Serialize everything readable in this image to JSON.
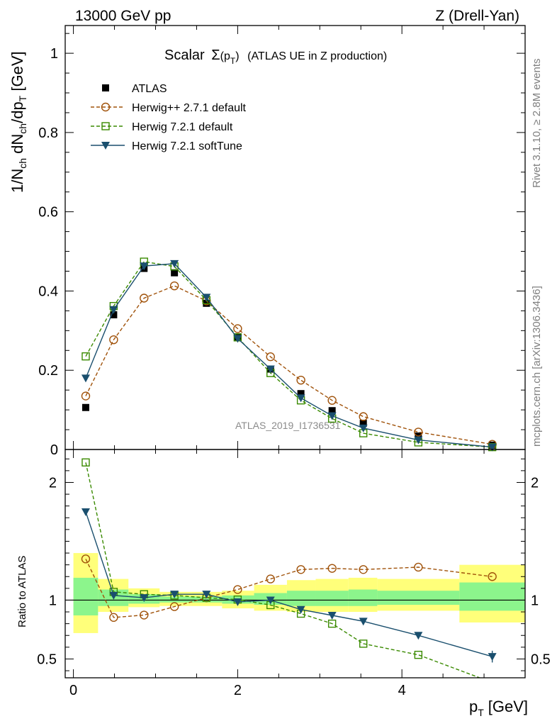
{
  "header": {
    "energy": "13000 GeV pp",
    "process": "Z (Drell-Yan)"
  },
  "side_labels": {
    "rivet": "Rivet 3.1.10, ≥ 2.8M events",
    "mcplots": "mcplots.cern.ch [arXiv:1306.3436]"
  },
  "watermark": "ATLAS_2019_I1736531",
  "chart_data": [
    {
      "type": "line",
      "panel": "main",
      "title": "Scalar Σ(pT) (ATLAS UE in Z production)",
      "title_main": "Scalar",
      "title_sigma": "Σ",
      "title_arg": "(p",
      "title_arg_sub": "T",
      "title_arg_close": ")",
      "title_rest": "(ATLAS UE in Z production)",
      "ylabel": "1/Nch dNch/dpT [GeV]",
      "ylabel_parts": [
        "1/N",
        "ch",
        " dN",
        "ch",
        "/dp",
        "T",
        " [GeV]"
      ],
      "xlim": [
        -0.1,
        5.5
      ],
      "ylim": [
        0,
        1.07
      ],
      "yticks": [
        0,
        0.2,
        0.4,
        0.6,
        0.8,
        1
      ],
      "ytick_labels": [
        "0",
        "0.2",
        "0.4",
        "0.6",
        "0.8",
        "1"
      ],
      "legend_position": "top-left",
      "x": [
        0.15,
        0.49,
        0.86,
        1.23,
        1.62,
        2.0,
        2.4,
        2.77,
        3.15,
        3.53,
        4.2,
        5.1
      ],
      "series": [
        {
          "name": "ATLAS",
          "color": "#000000",
          "marker": "filled-square",
          "line": "none",
          "values": [
            0.106,
            0.34,
            0.457,
            0.446,
            0.369,
            0.284,
            0.203,
            0.141,
            0.098,
            0.066,
            0.034,
            0.011
          ]
        },
        {
          "name": "Herwig++ 2.7.1 default",
          "color": "#a0520a",
          "marker": "open-circle",
          "line": "dashed",
          "values": [
            0.135,
            0.277,
            0.382,
            0.413,
            0.375,
            0.305,
            0.234,
            0.175,
            0.124,
            0.083,
            0.044,
            0.013
          ]
        },
        {
          "name": "Herwig 7.2.1 default",
          "color": "#3a8a00",
          "marker": "open-square",
          "line": "dashed",
          "values": [
            0.235,
            0.362,
            0.474,
            0.462,
            0.377,
            0.283,
            0.193,
            0.124,
            0.078,
            0.041,
            0.018,
            0.006
          ]
        },
        {
          "name": "Herwig 7.2.1 softTune",
          "color": "#1a4f6e",
          "marker": "filled-triangle-down",
          "line": "solid",
          "values": [
            0.18,
            0.353,
            0.463,
            0.469,
            0.384,
            0.28,
            0.203,
            0.13,
            0.085,
            0.054,
            0.024,
            0.006
          ]
        }
      ]
    },
    {
      "type": "line",
      "panel": "ratio",
      "ylabel": "Ratio to ATLAS",
      "xlabel": "pT [GeV]",
      "xlabel_main": "p",
      "xlabel_sub": "T",
      "xlabel_unit": "[GeV]",
      "xlim": [
        -0.1,
        5.5
      ],
      "ylim": [
        0.34,
        2.28
      ],
      "yticks": [
        0.5,
        1,
        2
      ],
      "ytick_labels": [
        "0.5",
        "1",
        "2"
      ],
      "xticks": [
        0,
        2,
        4
      ],
      "xtick_labels": [
        "0",
        "2",
        "4"
      ],
      "x": [
        0.15,
        0.49,
        0.86,
        1.23,
        1.62,
        2.0,
        2.4,
        2.77,
        3.15,
        3.53,
        4.2,
        5.1
      ],
      "bands": {
        "bin_edges": [
          0.0,
          0.3,
          0.67,
          1.05,
          1.43,
          1.81,
          2.2,
          2.6,
          2.95,
          3.35,
          3.7,
          4.7,
          5.5
        ],
        "yellow_low": [
          0.72,
          0.9,
          0.94,
          0.95,
          0.95,
          0.93,
          0.91,
          0.9,
          0.9,
          0.9,
          0.91,
          0.81
        ],
        "yellow_high": [
          1.4,
          1.18,
          1.1,
          1.07,
          1.07,
          1.08,
          1.13,
          1.17,
          1.18,
          1.19,
          1.18,
          1.3
        ],
        "green_low": [
          0.87,
          0.95,
          0.97,
          0.98,
          0.98,
          0.97,
          0.96,
          0.95,
          0.95,
          0.95,
          0.96,
          0.91
        ],
        "green_high": [
          1.19,
          1.09,
          1.05,
          1.03,
          1.03,
          1.04,
          1.06,
          1.08,
          1.08,
          1.09,
          1.08,
          1.15
        ]
      },
      "series": [
        {
          "name": "Herwig++ 2.7.1 default",
          "color": "#a0520a",
          "marker": "open-circle",
          "line": "dashed",
          "values": [
            1.35,
            0.853,
            0.873,
            0.945,
            1.02,
            1.09,
            1.18,
            1.26,
            1.27,
            1.26,
            1.28,
            1.2
          ]
        },
        {
          "name": "Herwig 7.2.1 default",
          "color": "#3a8a00",
          "marker": "open-square",
          "line": "dashed",
          "values": [
            2.17,
            1.07,
            1.05,
            1.04,
            1.02,
            1.005,
            0.958,
            0.885,
            0.8,
            0.63,
            0.535,
            0.3
          ]
        },
        {
          "name": "Herwig 7.2.1 softTune",
          "color": "#1a4f6e",
          "marker": "filled-triangle-down",
          "line": "solid",
          "values": [
            1.75,
            1.04,
            1.02,
            1.05,
            1.05,
            0.985,
            1.0,
            0.92,
            0.87,
            0.82,
            0.7,
            0.52
          ]
        }
      ]
    }
  ]
}
